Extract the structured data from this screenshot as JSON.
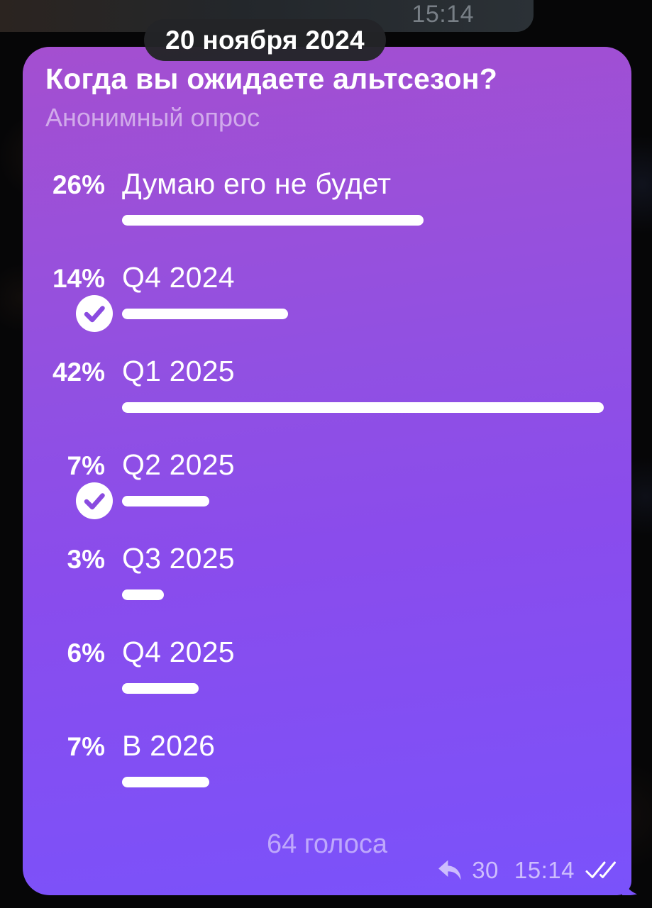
{
  "chat": {
    "previous_message_time": "15:14",
    "date_pill": "20 ноября 2024"
  },
  "poll": {
    "question": "Когда вы ожидаете альтсезон?",
    "type_label": "Анонимный опрос",
    "options": [
      {
        "percent": "26%",
        "label": "Думаю его не будет",
        "value": 26,
        "voted": false
      },
      {
        "percent": "14%",
        "label": "Q4 2024",
        "value": 14,
        "voted": true
      },
      {
        "percent": "42%",
        "label": "Q1 2025",
        "value": 42,
        "voted": false
      },
      {
        "percent": "7%",
        "label": "Q2 2025",
        "value": 7,
        "voted": true
      },
      {
        "percent": "3%",
        "label": "Q3 2025",
        "value": 3,
        "voted": false
      },
      {
        "percent": "6%",
        "label": "Q4 2025",
        "value": 6,
        "voted": false
      },
      {
        "percent": "7%",
        "label": "В 2026",
        "value": 7,
        "voted": false
      }
    ],
    "max_value": 42,
    "total_votes": "64 голоса"
  },
  "message_meta": {
    "reply_count": "30",
    "time": "15:14",
    "status": "read-double-check"
  },
  "colors": {
    "bubble_gradient_top": "#a44fd0",
    "bubble_gradient_mid": "#8a4cec",
    "bubble_gradient_bottom": "#7a52fb",
    "bar_fill": "#ffffff",
    "check_accent": "#8a4be0",
    "prev_bubble_bg": "#272b2f",
    "date_pill_bg": "#232428",
    "background": "#060607"
  }
}
